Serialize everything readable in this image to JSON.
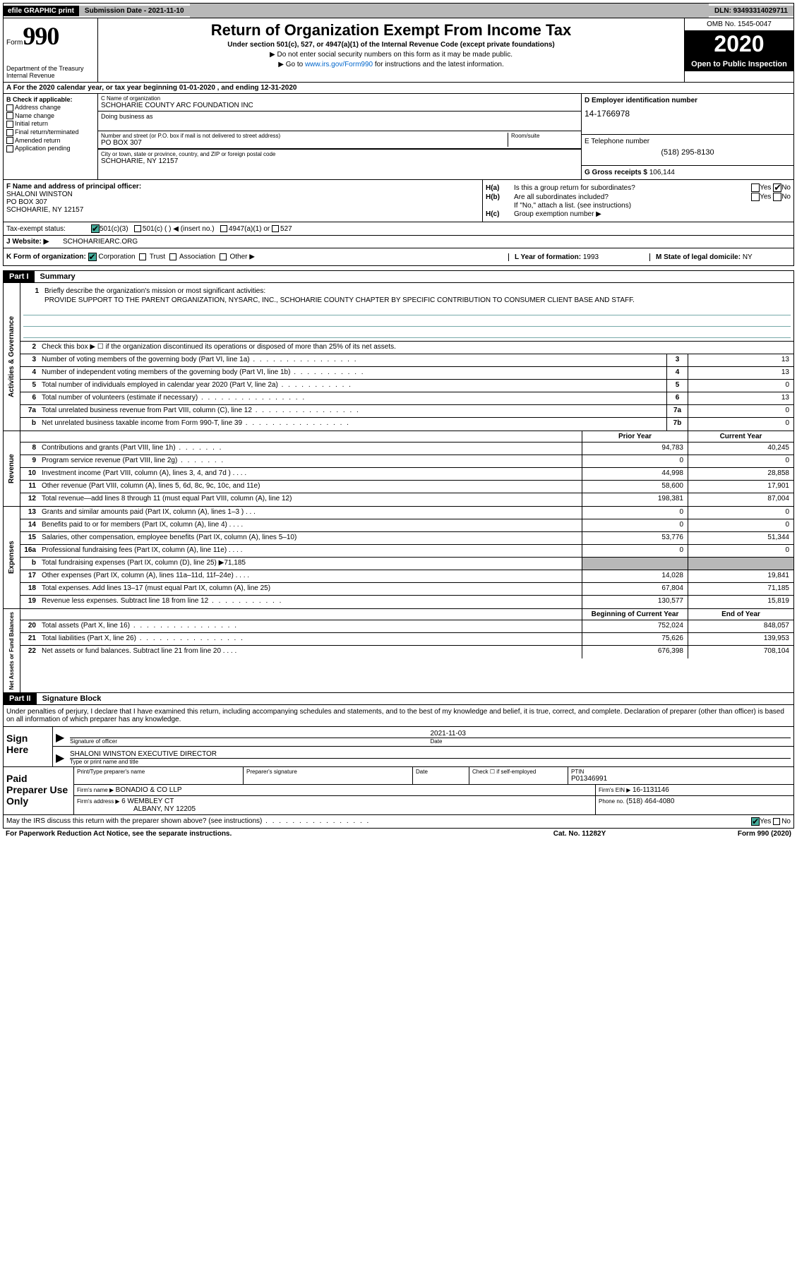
{
  "topbar": {
    "efile": "efile GRAPHIC print",
    "submission": "Submission Date - 2021-11-10",
    "dln": "DLN: 93493314029711"
  },
  "header": {
    "form_prefix": "Form",
    "form_number": "990",
    "dept": "Department of the Treasury",
    "irs": "Internal Revenue",
    "title": "Return of Organization Exempt From Income Tax",
    "subtitle": "Under section 501(c), 527, or 4947(a)(1) of the Internal Revenue Code (except private foundations)",
    "note1": "▶ Do not enter social security numbers on this form as it may be made public.",
    "note2_pre": "▶ Go to ",
    "note2_link": "www.irs.gov/Form990",
    "note2_post": " for instructions and the latest information.",
    "omb": "OMB No. 1545-0047",
    "year": "2020",
    "open_public": "Open to Public Inspection"
  },
  "line_a": "A For the 2020 calendar year, or tax year beginning 01-01-2020   , and ending 12-31-2020",
  "section_b": {
    "header": "B Check if applicable:",
    "items": [
      "Address change",
      "Name change",
      "Initial return",
      "Final return/terminated",
      "Amended return",
      "Application pending"
    ]
  },
  "section_c": {
    "name_label": "C Name of organization",
    "name_value": "SCHOHARIE COUNTY ARC FOUNDATION INC",
    "dba_label": "Doing business as",
    "street_label": "Number and street (or P.O. box if mail is not delivered to street address)",
    "street_value": "PO BOX 307",
    "room_label": "Room/suite",
    "city_label": "City or town, state or province, country, and ZIP or foreign postal code",
    "city_value": "SCHOHARIE, NY  12157"
  },
  "section_d": {
    "label": "D Employer identification number",
    "value": "14-1766978"
  },
  "section_e": {
    "label": "E Telephone number",
    "value": "(518) 295-8130"
  },
  "section_g": {
    "label": "G Gross receipts $",
    "value": "106,144"
  },
  "section_f": {
    "label": "F  Name and address of principal officer:",
    "name": "SHALONI WINSTON",
    "addr1": "PO BOX 307",
    "addr2": "SCHOHARIE, NY  12157"
  },
  "section_h": {
    "ha_label": "H(a)",
    "ha_text": "Is this a group return for subordinates?",
    "ha_no_checked": true,
    "hb_label": "H(b)",
    "hb_text": "Are all subordinates included?",
    "hb_note": "If \"No,\" attach a list. (see instructions)",
    "hc_label": "H(c)",
    "hc_text": "Group exemption number ▶"
  },
  "tax_status": {
    "label": "Tax-exempt status:",
    "opt1": "501(c)(3)",
    "opt2": "501(c) (  ) ◀ (insert no.)",
    "opt3": "4947(a)(1) or",
    "opt4": "527"
  },
  "website": {
    "label": "J   Website: ▶",
    "value": "SCHOHARIEARC.ORG"
  },
  "row_k": {
    "label": "K Form of organization:",
    "corp": "Corporation",
    "trust": "Trust",
    "assoc": "Association",
    "other": "Other ▶",
    "l_label": "L Year of formation:",
    "l_value": "1993",
    "m_label": "M State of legal domicile:",
    "m_value": "NY"
  },
  "part1": {
    "header": "Part I",
    "title": "Summary"
  },
  "mission": {
    "num": "1",
    "label": "Briefly describe the organization's mission or most significant activities:",
    "text": "PROVIDE SUPPORT TO THE PARENT ORGANIZATION, NYSARC, INC., SCHOHARIE COUNTY CHAPTER BY SPECIFIC CONTRIBUTION TO CONSUMER CLIENT BASE AND STAFF."
  },
  "governance": {
    "side": "Activities & Governance",
    "rows": [
      {
        "n": "2",
        "t": "Check this box ▶ ☐  if the organization discontinued its operations or disposed of more than 25% of its net assets.",
        "box": "",
        "val": ""
      },
      {
        "n": "3",
        "t": "Number of voting members of the governing body (Part VI, line 1a)",
        "box": "3",
        "val": "13",
        "dots": true
      },
      {
        "n": "4",
        "t": "Number of independent voting members of the governing body (Part VI, line 1b)",
        "box": "4",
        "val": "13",
        "dots": "med"
      },
      {
        "n": "5",
        "t": "Total number of individuals employed in calendar year 2020 (Part V, line 2a)",
        "box": "5",
        "val": "0",
        "dots": "med"
      },
      {
        "n": "6",
        "t": "Total number of volunteers (estimate if necessary)",
        "box": "6",
        "val": "13",
        "dots": true
      },
      {
        "n": "7a",
        "t": "Total unrelated business revenue from Part VIII, column (C), line 12",
        "box": "7a",
        "val": "0",
        "dots": true
      },
      {
        "n": "b",
        "t": "Net unrelated business taxable income from Form 990-T, line 39",
        "box": "7b",
        "val": "0",
        "dots": true
      }
    ]
  },
  "revenue": {
    "side": "Revenue",
    "prior_label": "Prior Year",
    "current_label": "Current Year",
    "rows": [
      {
        "n": "8",
        "t": "Contributions and grants (Part VIII, line 1h)",
        "prior": "94,783",
        "current": "40,245",
        "dots": "short"
      },
      {
        "n": "9",
        "t": "Program service revenue (Part VIII, line 2g)",
        "prior": "0",
        "current": "0",
        "dots": "short"
      },
      {
        "n": "10",
        "t": "Investment income (Part VIII, column (A), lines 3, 4, and 7d )   .   .   .   .",
        "prior": "44,998",
        "current": "28,858"
      },
      {
        "n": "11",
        "t": "Other revenue (Part VIII, column (A), lines 5, 6d, 8c, 9c, 10c, and 11e)",
        "prior": "58,600",
        "current": "17,901"
      },
      {
        "n": "12",
        "t": "Total revenue—add lines 8 through 11 (must equal Part VIII, column (A), line 12)",
        "prior": "198,381",
        "current": "87,004"
      }
    ]
  },
  "expenses": {
    "side": "Expenses",
    "rows": [
      {
        "n": "13",
        "t": "Grants and similar amounts paid (Part IX, column (A), lines 1–3 )   .   .   .",
        "prior": "0",
        "current": "0"
      },
      {
        "n": "14",
        "t": "Benefits paid to or for members (Part IX, column (A), line 4)   .   .   .   .",
        "prior": "0",
        "current": "0"
      },
      {
        "n": "15",
        "t": "Salaries, other compensation, employee benefits (Part IX, column (A), lines 5–10)",
        "prior": "53,776",
        "current": "51,344"
      },
      {
        "n": "16a",
        "t": "Professional fundraising fees (Part IX, column (A), line 11e)   .   .   .   .",
        "prior": "0",
        "current": "0"
      },
      {
        "n": "b",
        "t": "Total fundraising expenses (Part IX, column (D), line 25) ▶71,185",
        "prior": "",
        "current": "",
        "shaded": true
      },
      {
        "n": "17",
        "t": "Other expenses (Part IX, column (A), lines 11a–11d, 11f–24e)   .   .   .   .",
        "prior": "14,028",
        "current": "19,841"
      },
      {
        "n": "18",
        "t": "Total expenses. Add lines 13–17 (must equal Part IX, column (A), line 25)",
        "prior": "67,804",
        "current": "71,185"
      },
      {
        "n": "19",
        "t": "Revenue less expenses. Subtract line 18 from line 12",
        "prior": "130,577",
        "current": "15,819",
        "dots": "med"
      }
    ]
  },
  "net_assets": {
    "side": "Net Assets or Fund Balances",
    "begin_label": "Beginning of Current Year",
    "end_label": "End of Year",
    "rows": [
      {
        "n": "20",
        "t": "Total assets (Part X, line 16)",
        "prior": "752,024",
        "current": "848,057",
        "dots": true
      },
      {
        "n": "21",
        "t": "Total liabilities (Part X, line 26)",
        "prior": "75,626",
        "current": "139,953",
        "dots": true
      },
      {
        "n": "22",
        "t": "Net assets or fund balances. Subtract line 21 from line 20   .   .   .   .",
        "prior": "676,398",
        "current": "708,104"
      }
    ]
  },
  "part2": {
    "header": "Part II",
    "title": "Signature Block",
    "declaration": "Under penalties of perjury, I declare that I have examined this return, including accompanying schedules and statements, and to the best of my knowledge and belief, it is true, correct, and complete. Declaration of preparer (other than officer) is based on all information of which preparer has any knowledge."
  },
  "sign_here": {
    "label": "Sign Here",
    "sig_label": "Signature of officer",
    "date_label": "Date",
    "date_value": "2021-11-03",
    "name_value": "SHALONI WINSTON  EXECUTIVE DIRECTOR",
    "name_label": "Type or print name and title"
  },
  "paid_prep": {
    "label": "Paid Preparer Use Only",
    "r1": {
      "name_label": "Print/Type preparer's name",
      "sig_label": "Preparer's signature",
      "date_label": "Date",
      "check_label": "Check ☐ if self-employed",
      "ptin_label": "PTIN",
      "ptin_value": "P01346991"
    },
    "r2": {
      "firm_label": "Firm's name     ▶",
      "firm_value": "BONADIO & CO LLP",
      "ein_label": "Firm's EIN ▶",
      "ein_value": "16-1131146"
    },
    "r3": {
      "addr_label": "Firm's address ▶",
      "addr_value": "6 WEMBLEY CT",
      "addr_value2": "ALBANY, NY 12205",
      "phone_label": "Phone no.",
      "phone_value": "(518) 464-4080"
    }
  },
  "irs_discuss": {
    "text": "May the IRS discuss this return with the preparer shown above? (see instructions)",
    "yes_checked": true
  },
  "footer": {
    "left": "For Paperwork Reduction Act Notice, see the separate instructions.",
    "mid": "Cat. No. 11282Y",
    "right": "Form 990 (2020)"
  }
}
